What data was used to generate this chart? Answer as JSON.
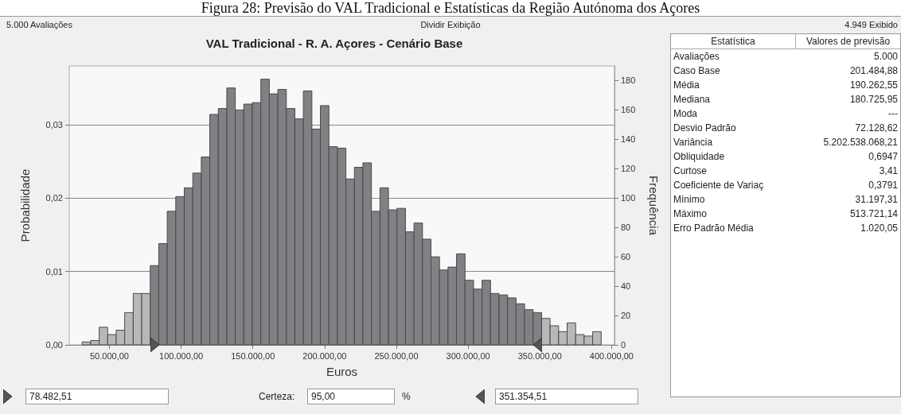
{
  "chart_data": [
    {
      "type": "histogram",
      "title": "VAL Tradicional - R. A. Açores - Cenário Base",
      "xlabel": "Euros",
      "ylabel": "Probabilidade",
      "y2label": "Frequência",
      "bins": [
        31000,
        36930,
        42860,
        48790,
        54720,
        60650,
        66580,
        72510,
        78440,
        84370,
        90300,
        96230,
        102160,
        108090,
        114020,
        119950,
        125880,
        131810,
        137740,
        143670,
        149600,
        155530,
        161460,
        167390,
        173320,
        179250,
        185180,
        191110,
        197040,
        202970,
        208900,
        214830,
        220760,
        226690,
        232620,
        238550,
        244480,
        250410,
        256340,
        262270,
        268200,
        274130,
        280060,
        285990,
        291920,
        297850,
        303780,
        309710,
        315640,
        321570,
        327500,
        333430,
        339360,
        345290,
        351220,
        357150,
        363080,
        369010,
        374940,
        380870,
        386800,
        392730
      ],
      "series": [
        {
          "axis": "y2",
          "values": [
            2,
            3,
            12,
            7,
            10,
            22,
            35,
            35,
            54,
            69,
            91,
            101,
            107,
            117,
            128,
            157,
            161,
            175,
            160,
            164,
            165,
            181,
            171,
            174,
            161,
            154,
            173,
            147,
            163,
            135,
            134,
            113,
            121,
            124,
            91,
            107,
            92,
            93,
            77,
            83,
            72,
            60,
            51,
            53,
            62,
            44,
            38,
            44,
            35,
            34,
            32,
            28,
            24,
            22,
            18,
            13,
            9,
            15,
            7,
            6,
            9
          ],
          "colors": [
            "#b8b8b8",
            "#b8b8b8",
            "#b8b8b8",
            "#b8b8b8",
            "#b8b8b8",
            "#b8b8b8",
            "#b8b8b8",
            "#b8b8b8",
            "#808085",
            "#808085",
            "#808085",
            "#808085",
            "#808085",
            "#808085",
            "#808085",
            "#808085",
            "#808085",
            "#808085",
            "#808085",
            "#808085",
            "#808085",
            "#808085",
            "#808085",
            "#808085",
            "#808085",
            "#808085",
            "#808085",
            "#808085",
            "#808085",
            "#808085",
            "#808085",
            "#808085",
            "#808085",
            "#808085",
            "#808085",
            "#808085",
            "#808085",
            "#808085",
            "#808085",
            "#808085",
            "#808085",
            "#808085",
            "#808085",
            "#808085",
            "#808085",
            "#808085",
            "#808085",
            "#808085",
            "#808085",
            "#808085",
            "#808085",
            "#808085",
            "#808085",
            "#808085",
            "#b8b8b8",
            "#b8b8b8",
            "#b8b8b8",
            "#b8b8b8",
            "#b8b8b8",
            "#b8b8b8",
            "#b8b8b8"
          ]
        }
      ],
      "xlim": [
        22000,
        402000
      ],
      "xticks": [
        {
          "value": 50000,
          "label": "50.000,00"
        },
        {
          "value": 100000,
          "label": "100.000,00"
        },
        {
          "value": 150000,
          "label": "150.000,00"
        },
        {
          "value": 200000,
          "label": "200.000,00"
        },
        {
          "value": 250000,
          "label": "250.000,00"
        },
        {
          "value": 300000,
          "label": "300.000,00"
        },
        {
          "value": 350000,
          "label": "350.000,00"
        },
        {
          "value": 400000,
          "label": "400.000,00"
        }
      ],
      "ylim": [
        0,
        0.038
      ],
      "yticks": [
        {
          "value": 0,
          "label": "0,00"
        },
        {
          "value": 0.01,
          "label": "0,01"
        },
        {
          "value": 0.02,
          "label": "0,02"
        },
        {
          "value": 0.03,
          "label": "0,03"
        }
      ],
      "y2lim": [
        0,
        190
      ],
      "y2ticks": [
        0,
        20,
        40,
        60,
        80,
        100,
        120,
        140,
        160,
        180
      ],
      "grid": "y",
      "annotations": [
        "Figura 28: Previsão do VAL Tradicional e Estatísticas da Região Autónoma dos Açores",
        "5.000 Avaliações",
        "Dividir Exibição",
        "4.949 Exibido",
        "78.482,51",
        "Certeza:",
        "95,00",
        "%",
        "351.354,51"
      ]
    },
    {
      "type": "other",
      "annotations": [
        "Estatística",
        "Valores de previsão"
      ],
      "categories": [
        "Avaliações",
        "Caso Base",
        "Média",
        "Mediana",
        "Moda",
        "Desvio Padrão",
        "Variância",
        "Obliquidade",
        "Curtose",
        "Coeficiente de Variaç",
        "Mínimo",
        "Máximo",
        "Erro Padrão Média"
      ],
      "value_labels": [
        "5.000",
        "201.484,88",
        "190.262,55",
        "180.725,95",
        "---",
        "72.128,62",
        "5.202.538.068,21",
        "0,6947",
        "3,41",
        "0,3791",
        "31.197,31",
        "513.721,14",
        "1.020,05"
      ]
    }
  ]
}
